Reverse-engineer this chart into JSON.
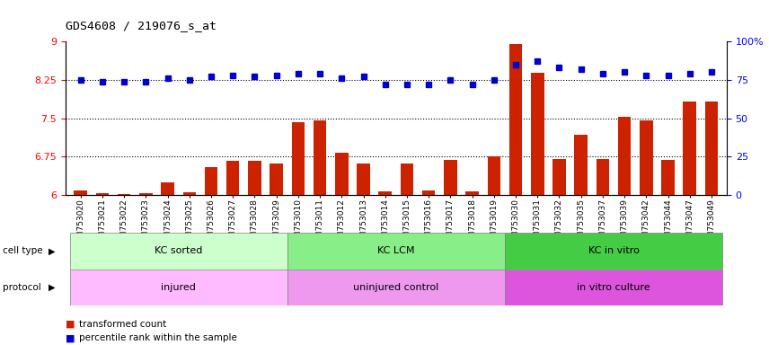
{
  "title": "GDS4608 / 219076_s_at",
  "samples": [
    "GSM753020",
    "GSM753021",
    "GSM753022",
    "GSM753023",
    "GSM753024",
    "GSM753025",
    "GSM753026",
    "GSM753027",
    "GSM753028",
    "GSM753029",
    "GSM753010",
    "GSM753011",
    "GSM753012",
    "GSM753013",
    "GSM753014",
    "GSM753015",
    "GSM753016",
    "GSM753017",
    "GSM753018",
    "GSM753019",
    "GSM753030",
    "GSM753031",
    "GSM753032",
    "GSM753035",
    "GSM753037",
    "GSM753039",
    "GSM753042",
    "GSM753044",
    "GSM753047",
    "GSM753049"
  ],
  "bar_values": [
    6.08,
    6.03,
    6.02,
    6.03,
    6.25,
    6.05,
    6.55,
    6.67,
    6.67,
    6.62,
    7.42,
    7.45,
    6.82,
    6.62,
    6.07,
    6.62,
    6.08,
    6.68,
    6.07,
    6.75,
    8.95,
    8.38,
    6.7,
    7.18,
    6.71,
    7.52,
    7.45,
    6.68,
    7.82,
    7.82
  ],
  "percentile_values": [
    75,
    74,
    74,
    74,
    76,
    75,
    77,
    78,
    77,
    78,
    79,
    79,
    76,
    77,
    72,
    72,
    72,
    75,
    72,
    75,
    85,
    87,
    83,
    82,
    79,
    80,
    78,
    78,
    79,
    80
  ],
  "bar_color": "#cc2200",
  "percentile_color": "#0000cc",
  "ylim_left": [
    6,
    9
  ],
  "ylim_right": [
    0,
    100
  ],
  "yticks_left": [
    6,
    6.75,
    7.5,
    8.25,
    9
  ],
  "yticks_right": [
    0,
    25,
    50,
    75,
    100
  ],
  "hlines": [
    6.75,
    7.5,
    8.25
  ],
  "cell_type_groups": [
    {
      "label": "KC sorted",
      "start": 0,
      "end": 9,
      "color": "#ccffcc"
    },
    {
      "label": "KC LCM",
      "start": 10,
      "end": 19,
      "color": "#88ee88"
    },
    {
      "label": "KC in vitro",
      "start": 20,
      "end": 29,
      "color": "#44cc44"
    }
  ],
  "protocol_groups": [
    {
      "label": "injured",
      "start": 0,
      "end": 9,
      "color": "#ffbbff"
    },
    {
      "label": "uninjured control",
      "start": 10,
      "end": 19,
      "color": "#ee99ee"
    },
    {
      "label": "in vitro culture",
      "start": 20,
      "end": 29,
      "color": "#dd55dd"
    }
  ],
  "legend_items": [
    {
      "label": "transformed count",
      "color": "#cc2200"
    },
    {
      "label": "percentile rank within the sample",
      "color": "#0000cc"
    }
  ],
  "bar_width": 0.6
}
